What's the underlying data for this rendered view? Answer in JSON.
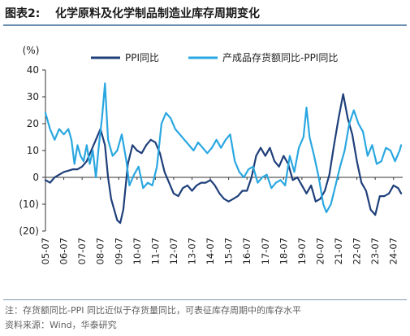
{
  "figure": {
    "label": "图表2:",
    "title": "化学原料及化学制品制造业库存周期变化"
  },
  "chart_data": {
    "type": "line",
    "ylabel": "(%)",
    "ylim": [
      -20,
      40
    ],
    "yticks": [
      40,
      30,
      20,
      10,
      0,
      -10,
      -20
    ],
    "ytick_labels": [
      "40",
      "30",
      "20",
      "10",
      "0",
      "(10)",
      "(20)"
    ],
    "xlim": [
      "2005-07",
      "2025-01"
    ],
    "xtick_labels": [
      "05-07",
      "06-07",
      "07-07",
      "08-07",
      "09-07",
      "10-07",
      "11-07",
      "12-07",
      "13-07",
      "14-07",
      "15-07",
      "16-07",
      "17-07",
      "18-07",
      "19-07",
      "20-07",
      "21-07",
      "22-07",
      "23-07",
      "24-07"
    ],
    "legend_position": "top",
    "colors": {
      "ppi": "#1f3f7a",
      "finished_goods": "#2aa7e0"
    },
    "series": [
      {
        "name": "PPI同比",
        "key": "ppi",
        "points": [
          [
            "2005-07",
            -1
          ],
          [
            "2005-10",
            -2
          ],
          [
            "2006-01",
            0
          ],
          [
            "2006-04",
            1
          ],
          [
            "2006-07",
            2
          ],
          [
            "2006-10",
            2.5
          ],
          [
            "2007-01",
            3
          ],
          [
            "2007-04",
            3
          ],
          [
            "2007-07",
            4
          ],
          [
            "2007-10",
            6
          ],
          [
            "2008-01",
            10
          ],
          [
            "2008-04",
            14
          ],
          [
            "2008-07",
            18
          ],
          [
            "2008-10",
            12
          ],
          [
            "2008-12",
            0
          ],
          [
            "2009-02",
            -8
          ],
          [
            "2009-04",
            -12
          ],
          [
            "2009-06",
            -16
          ],
          [
            "2009-08",
            -17
          ],
          [
            "2009-10",
            -12
          ],
          [
            "2010-01",
            5
          ],
          [
            "2010-04",
            12
          ],
          [
            "2010-07",
            10
          ],
          [
            "2010-10",
            9
          ],
          [
            "2011-01",
            12
          ],
          [
            "2011-04",
            14
          ],
          [
            "2011-07",
            13
          ],
          [
            "2011-10",
            9
          ],
          [
            "2012-01",
            2
          ],
          [
            "2012-04",
            -2
          ],
          [
            "2012-07",
            -6
          ],
          [
            "2012-10",
            -7
          ],
          [
            "2013-01",
            -4
          ],
          [
            "2013-04",
            -3
          ],
          [
            "2013-07",
            -5
          ],
          [
            "2013-10",
            -3
          ],
          [
            "2014-01",
            -2
          ],
          [
            "2014-04",
            -2
          ],
          [
            "2014-07",
            -1
          ],
          [
            "2014-10",
            -3
          ],
          [
            "2015-01",
            -6
          ],
          [
            "2015-04",
            -8
          ],
          [
            "2015-07",
            -9
          ],
          [
            "2015-10",
            -8
          ],
          [
            "2016-01",
            -7
          ],
          [
            "2016-04",
            -5
          ],
          [
            "2016-07",
            -5
          ],
          [
            "2016-10",
            0
          ],
          [
            "2017-01",
            8
          ],
          [
            "2017-04",
            11
          ],
          [
            "2017-07",
            8
          ],
          [
            "2017-10",
            11
          ],
          [
            "2018-01",
            6
          ],
          [
            "2018-04",
            4
          ],
          [
            "2018-07",
            8
          ],
          [
            "2018-10",
            5
          ],
          [
            "2019-01",
            -1
          ],
          [
            "2019-04",
            0
          ],
          [
            "2019-07",
            -3
          ],
          [
            "2019-10",
            -6
          ],
          [
            "2020-01",
            -3
          ],
          [
            "2020-04",
            -9
          ],
          [
            "2020-07",
            -8
          ],
          [
            "2020-10",
            -5
          ],
          [
            "2021-01",
            1
          ],
          [
            "2021-04",
            12
          ],
          [
            "2021-07",
            22
          ],
          [
            "2021-10",
            31
          ],
          [
            "2022-01",
            22
          ],
          [
            "2022-04",
            16
          ],
          [
            "2022-07",
            6
          ],
          [
            "2022-10",
            -2
          ],
          [
            "2023-01",
            -5
          ],
          [
            "2023-04",
            -12
          ],
          [
            "2023-07",
            -14
          ],
          [
            "2023-10",
            -7
          ],
          [
            "2024-01",
            -7
          ],
          [
            "2024-04",
            -6
          ],
          [
            "2024-07",
            -3
          ],
          [
            "2024-10",
            -4
          ],
          [
            "2024-12",
            -6
          ]
        ]
      },
      {
        "name": "产成品存货额同比-PPI同比",
        "key": "finished_goods",
        "points": [
          [
            "2005-07",
            24
          ],
          [
            "2005-10",
            18
          ],
          [
            "2006-01",
            14
          ],
          [
            "2006-04",
            18
          ],
          [
            "2006-07",
            16
          ],
          [
            "2006-10",
            18
          ],
          [
            "2006-12",
            14
          ],
          [
            "2007-02",
            5
          ],
          [
            "2007-04",
            12
          ],
          [
            "2007-06",
            8
          ],
          [
            "2007-08",
            6
          ],
          [
            "2007-10",
            12
          ],
          [
            "2007-12",
            5
          ],
          [
            "2008-02",
            10
          ],
          [
            "2008-04",
            0
          ],
          [
            "2008-06",
            12
          ],
          [
            "2008-08",
            22
          ],
          [
            "2008-10",
            35
          ],
          [
            "2008-12",
            14
          ],
          [
            "2009-03",
            8
          ],
          [
            "2009-06",
            10
          ],
          [
            "2009-09",
            16
          ],
          [
            "2009-12",
            6
          ],
          [
            "2010-02",
            -3
          ],
          [
            "2010-05",
            1
          ],
          [
            "2010-08",
            4
          ],
          [
            "2010-11",
            -4
          ],
          [
            "2011-02",
            -2
          ],
          [
            "2011-05",
            -3
          ],
          [
            "2011-08",
            4
          ],
          [
            "2011-11",
            20
          ],
          [
            "2012-02",
            24
          ],
          [
            "2012-05",
            22
          ],
          [
            "2012-08",
            18
          ],
          [
            "2012-11",
            16
          ],
          [
            "2013-02",
            14
          ],
          [
            "2013-05",
            12
          ],
          [
            "2013-08",
            10
          ],
          [
            "2013-11",
            13
          ],
          [
            "2014-02",
            11
          ],
          [
            "2014-05",
            9
          ],
          [
            "2014-08",
            11
          ],
          [
            "2014-11",
            14
          ],
          [
            "2015-02",
            11
          ],
          [
            "2015-05",
            14
          ],
          [
            "2015-08",
            16
          ],
          [
            "2015-11",
            6
          ],
          [
            "2016-02",
            2
          ],
          [
            "2016-05",
            0
          ],
          [
            "2016-08",
            3
          ],
          [
            "2016-11",
            4
          ],
          [
            "2017-02",
            -2
          ],
          [
            "2017-05",
            0
          ],
          [
            "2017-08",
            1
          ],
          [
            "2017-11",
            -4
          ],
          [
            "2018-02",
            -2
          ],
          [
            "2018-05",
            -1
          ],
          [
            "2018-08",
            -3
          ],
          [
            "2018-11",
            8
          ],
          [
            "2019-02",
            2
          ],
          [
            "2019-05",
            11
          ],
          [
            "2019-08",
            15
          ],
          [
            "2019-10",
            26
          ],
          [
            "2019-12",
            15
          ],
          [
            "2020-03",
            8
          ],
          [
            "2020-06",
            0
          ],
          [
            "2020-09",
            -10
          ],
          [
            "2020-11",
            -13
          ],
          [
            "2021-02",
            -10
          ],
          [
            "2021-05",
            -3
          ],
          [
            "2021-08",
            4
          ],
          [
            "2021-11",
            10
          ],
          [
            "2022-02",
            20
          ],
          [
            "2022-05",
            25
          ],
          [
            "2022-08",
            20
          ],
          [
            "2022-11",
            17
          ],
          [
            "2023-02",
            8
          ],
          [
            "2023-05",
            12
          ],
          [
            "2023-08",
            5
          ],
          [
            "2023-11",
            6
          ],
          [
            "2024-02",
            11
          ],
          [
            "2024-05",
            10
          ],
          [
            "2024-08",
            6
          ],
          [
            "2024-11",
            10
          ],
          [
            "2024-12",
            12
          ]
        ]
      }
    ]
  },
  "footer": {
    "note": "注：存货额同比-PPI 同比近似于存货量同比，可表征库存周期中的库存水平",
    "source": "资料来源：Wind，华泰研究"
  }
}
